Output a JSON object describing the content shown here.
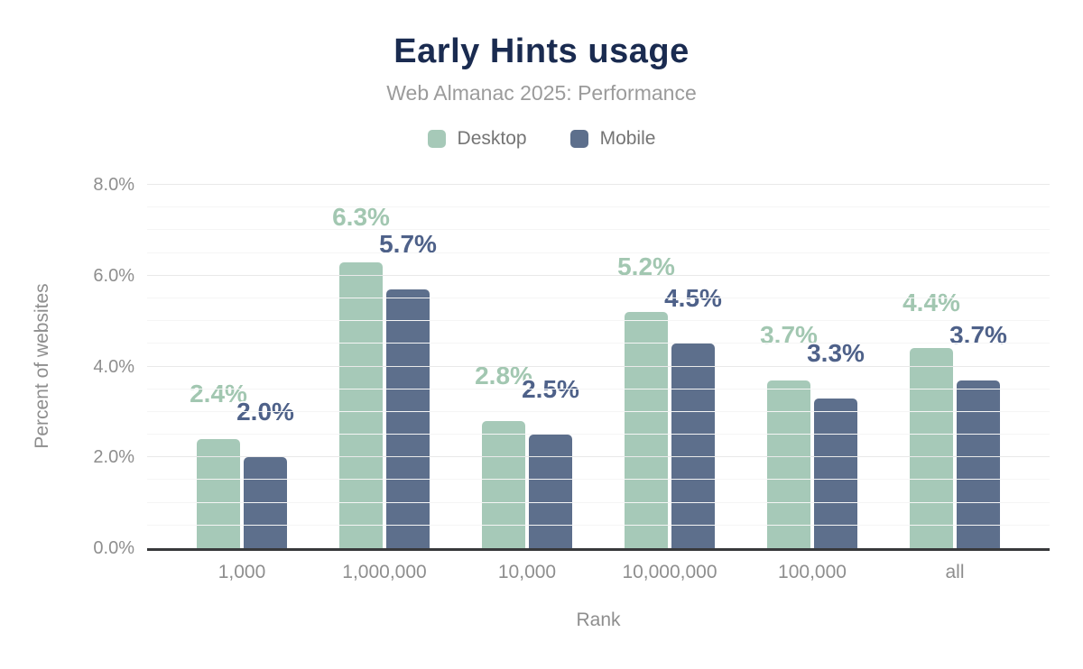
{
  "header": {
    "title": "Early Hints usage",
    "subtitle": "Web Almanac 2025: Performance"
  },
  "axes": {
    "y_title": "Percent of websites",
    "x_title": "Rank"
  },
  "legend": [
    {
      "id": "desktop",
      "label": "Desktop",
      "color": "#a6c9b8"
    },
    {
      "id": "mobile",
      "label": "Mobile",
      "color": "#5d6f8c"
    }
  ],
  "chart_data": {
    "type": "bar",
    "title": "Early Hints usage",
    "subtitle": "Web Almanac 2025: Performance",
    "categories": [
      "1,000",
      "1,000,000",
      "10,000",
      "10,000,000",
      "100,000",
      "all"
    ],
    "series": [
      {
        "name": "Desktop",
        "values": [
          2.4,
          6.3,
          2.8,
          5.2,
          3.7,
          4.4
        ],
        "labels": [
          "2.4%",
          "6.3%",
          "2.8%",
          "5.2%",
          "3.7%",
          "4.4%"
        ],
        "bar_color": "#a6c9b8",
        "label_color": "#a2c7b1"
      },
      {
        "name": "Mobile",
        "values": [
          2.0,
          5.7,
          2.5,
          4.5,
          3.3,
          3.7
        ],
        "labels": [
          "2.0%",
          "5.7%",
          "2.5%",
          "4.5%",
          "3.3%",
          "3.7%"
        ],
        "bar_color": "#5d6f8c",
        "label_color": "#4e6189"
      }
    ],
    "xlabel": "Rank",
    "ylabel": "Percent of websites",
    "ylim": [
      0,
      8
    ],
    "ytick_values": [
      0,
      2,
      4,
      6,
      8
    ],
    "ytick_labels": [
      "0.0%",
      "2.0%",
      "4.0%",
      "6.0%",
      "8.0%"
    ],
    "ytick_step_minor": 0.5,
    "ytick_step_major": 2,
    "grid": true,
    "legend_position": "top",
    "colors": {
      "title": "#1a2b50",
      "subtitle": "#9b9b9b",
      "legend_text": "#757575",
      "tick_text": "#8e8e8e",
      "axis_line": "#38393b",
      "grid_major": "#e9e9e9",
      "grid_minor": "#f5f5f5",
      "background": "#ffffff"
    }
  }
}
